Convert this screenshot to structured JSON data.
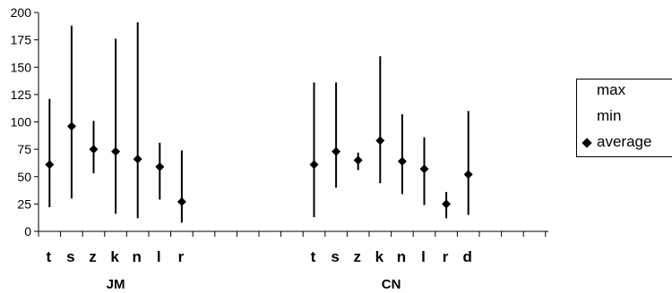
{
  "chart_data": {
    "type": "scatter",
    "ylim": [
      0,
      200
    ],
    "yticks": [
      0,
      25,
      50,
      75,
      100,
      125,
      150,
      175,
      200
    ],
    "xlabel": "",
    "ylabel": "",
    "grid": false,
    "legend_position": "right",
    "groups": [
      {
        "label": "JM",
        "categories": [
          "t",
          "s",
          "z",
          "k",
          "n",
          "l",
          "r"
        ],
        "max": [
          121,
          188,
          101,
          176,
          191,
          81,
          74
        ],
        "min": [
          22,
          30,
          53,
          16,
          12,
          29,
          8
        ],
        "average": [
          61,
          96,
          75,
          73,
          66,
          59,
          27
        ]
      },
      {
        "label": "CN",
        "categories": [
          "t",
          "s",
          "z",
          "k",
          "n",
          "l",
          "r",
          "d"
        ],
        "max": [
          136,
          136,
          72,
          160,
          107,
          86,
          36,
          110
        ],
        "min": [
          13,
          40,
          56,
          44,
          34,
          24,
          12,
          15
        ],
        "average": [
          61,
          73,
          65,
          83,
          64,
          57,
          25,
          52
        ]
      }
    ],
    "legend": [
      {
        "label": "max",
        "marker": "none"
      },
      {
        "label": "min",
        "marker": "none"
      },
      {
        "label": "average",
        "marker": "diamond"
      }
    ],
    "colors": {
      "line": "#000000",
      "marker": "#000000",
      "background": "#ffffff"
    }
  }
}
